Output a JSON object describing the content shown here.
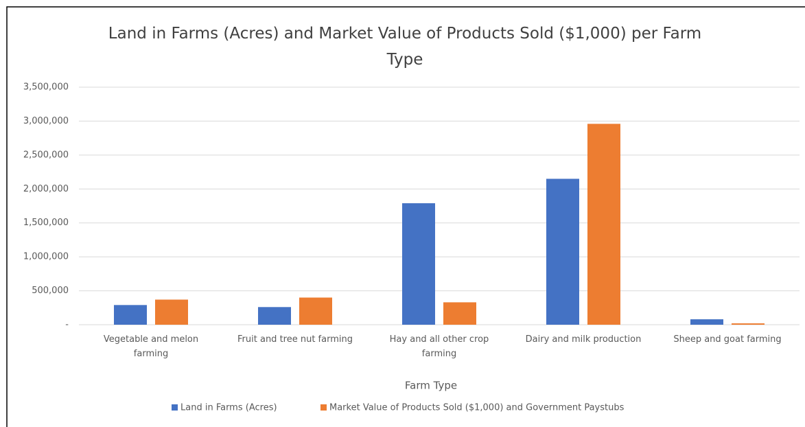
{
  "chart_data": {
    "type": "bar",
    "title": "Land in Farms (Acres) and Market Value of Products Sold ($1,000) per Farm Type",
    "x_label": "Farm Type",
    "categories": [
      "Vegetable and melon farming",
      "Fruit and tree nut farming",
      "Hay and all other crop farming",
      "Dairy and milk production",
      "Sheep and goat farming"
    ],
    "series": [
      {
        "name": "Land in Farms (Acres)",
        "color": "#4472c4",
        "values": [
          290000,
          260000,
          1790000,
          2150000,
          80000
        ]
      },
      {
        "name": "Market Value of Products Sold ($1,000) and Government Paystubs",
        "color": "#ed7d31",
        "values": [
          370000,
          400000,
          330000,
          2960000,
          20000
        ]
      }
    ],
    "ylim": [
      0,
      3500000
    ],
    "yticks": [
      {
        "value": 0,
        "label": "-"
      },
      {
        "value": 500000,
        "label": "500,000"
      },
      {
        "value": 1000000,
        "label": "1,000,000"
      },
      {
        "value": 1500000,
        "label": "1,500,000"
      },
      {
        "value": 2000000,
        "label": "2,000,000"
      },
      {
        "value": 2500000,
        "label": "2,500,000"
      },
      {
        "value": 3000000,
        "label": "3,000,000"
      },
      {
        "value": 3500000,
        "label": "3,500,000"
      }
    ],
    "grid": true,
    "legend": "bottom"
  }
}
